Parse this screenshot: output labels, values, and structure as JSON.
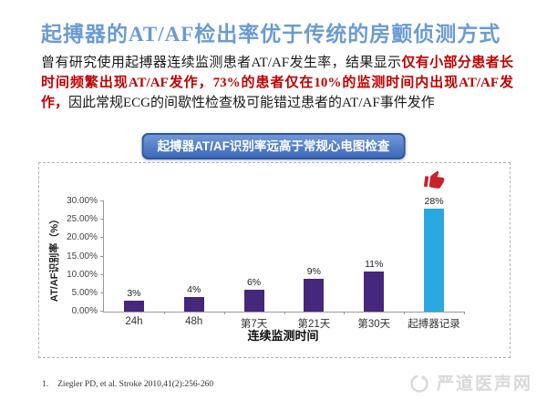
{
  "slide": {
    "title": "起搏器的AT/AF检出率优于传统的房颤侦测方式",
    "paragraph": {
      "part1_black": "曾有研究使用起搏器连续监测患者AT/AF发生率，结果显示",
      "part2_red": "仅有小部分患者长时间频繁出现AT/AF发作，73%的患者仅在10%的监测时间内出现AT/AF发作，",
      "part3_black": "因此常规ECG的间歇性检查极可能错过患者的AT/AF事件发作"
    },
    "banner": "起搏器AT/AF识别率远高于常规心电图检查",
    "footnote": {
      "number": "1.",
      "text": "Ziegler PD, et al. Stroke 2010,41(2):256-260"
    },
    "watermark": "严道医声网"
  },
  "colors": {
    "title_blue": "#6b9bd2",
    "red_text": "#c00000",
    "banner_border": "#2d55a0",
    "bar_purple": "#45277b",
    "bar_cyan": "#2aa9e0",
    "thumb_red": "#c9202b",
    "axis_gray": "#999999",
    "watermark_gray": "#d9d9d9"
  },
  "chart_data": {
    "type": "bar",
    "title": "起搏器AT/AF识别率远高于常规心电图检查",
    "categories": [
      "24h",
      "48h",
      "第7天",
      "第21天",
      "第30天",
      "起搏器记录"
    ],
    "values": [
      3,
      4,
      6,
      9,
      11,
      28
    ],
    "labels": [
      "3%",
      "4%",
      "6%",
      "9%",
      "11%",
      "28%"
    ],
    "xlabel": "连续监测时间",
    "ylabel": "AT/AF识别率（%）",
    "ylim": [
      0,
      30
    ],
    "yticks": [
      "0.00%",
      "5.00%",
      "10.00%",
      "15.00%",
      "20.00%",
      "25.00%",
      "30.00%"
    ],
    "highlight_index": 5,
    "grid": false,
    "legend": null
  }
}
